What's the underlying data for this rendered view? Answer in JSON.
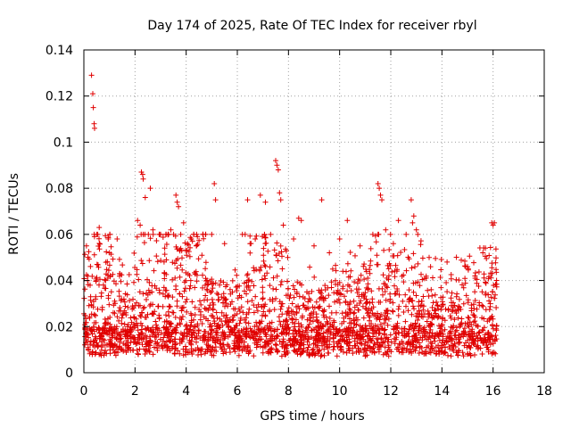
{
  "chart_data": {
    "type": "scatter",
    "title": "Day 174 of 2025, Rate Of TEC Index for receiver rbyl",
    "xlabel": "GPS time / hours",
    "ylabel": "ROTI / TECUs",
    "xlim": [
      0,
      18
    ],
    "ylim": [
      0,
      0.14
    ],
    "xticks": [
      "0",
      "2",
      "4",
      "6",
      "8",
      "10",
      "12",
      "14",
      "16",
      "18"
    ],
    "yticks": [
      "0",
      "0.02",
      "0.04",
      "0.06",
      "0.08",
      "0.1",
      "0.12",
      "0.14"
    ],
    "grid": true,
    "marker": "plus",
    "color": "#e00000",
    "series": [
      {
        "name": "ROTI",
        "points": [
          [
            0.3,
            0.129
          ],
          [
            0.35,
            0.121
          ],
          [
            0.37,
            0.115
          ],
          [
            0.4,
            0.108
          ],
          [
            0.42,
            0.106
          ],
          [
            2.25,
            0.087
          ],
          [
            2.3,
            0.086
          ],
          [
            2.32,
            0.084
          ],
          [
            2.4,
            0.076
          ],
          [
            2.6,
            0.08
          ],
          [
            3.6,
            0.077
          ],
          [
            3.65,
            0.074
          ],
          [
            3.7,
            0.072
          ],
          [
            5.1,
            0.082
          ],
          [
            5.15,
            0.075
          ],
          [
            6.4,
            0.075
          ],
          [
            6.9,
            0.077
          ],
          [
            7.1,
            0.074
          ],
          [
            7.5,
            0.092
          ],
          [
            7.55,
            0.09
          ],
          [
            7.6,
            0.088
          ],
          [
            7.65,
            0.078
          ],
          [
            7.7,
            0.075
          ],
          [
            8.4,
            0.067
          ],
          [
            8.5,
            0.066
          ],
          [
            9.3,
            0.075
          ],
          [
            10.3,
            0.066
          ],
          [
            11.5,
            0.082
          ],
          [
            11.55,
            0.08
          ],
          [
            11.6,
            0.077
          ],
          [
            11.65,
            0.075
          ],
          [
            12.3,
            0.066
          ],
          [
            12.8,
            0.075
          ],
          [
            12.9,
            0.068
          ],
          [
            12.85,
            0.065
          ],
          [
            15.95,
            0.065
          ],
          [
            16.0,
            0.064
          ],
          [
            16.05,
            0.065
          ],
          [
            0.1,
            0.055
          ],
          [
            0.5,
            0.06
          ],
          [
            0.6,
            0.063
          ],
          [
            1.0,
            0.052
          ],
          [
            1.3,
            0.058
          ],
          [
            2.1,
            0.066
          ],
          [
            2.2,
            0.064
          ],
          [
            2.7,
            0.062
          ],
          [
            3.0,
            0.06
          ],
          [
            3.4,
            0.062
          ],
          [
            3.9,
            0.065
          ],
          [
            4.2,
            0.058
          ],
          [
            4.4,
            0.055
          ],
          [
            5.0,
            0.06
          ],
          [
            5.5,
            0.056
          ],
          [
            6.2,
            0.06
          ],
          [
            6.7,
            0.058
          ],
          [
            7.3,
            0.06
          ],
          [
            7.8,
            0.064
          ],
          [
            8.2,
            0.058
          ],
          [
            9.0,
            0.055
          ],
          [
            9.6,
            0.052
          ],
          [
            10.0,
            0.058
          ],
          [
            10.8,
            0.055
          ],
          [
            11.3,
            0.06
          ],
          [
            11.8,
            0.062
          ],
          [
            12.1,
            0.056
          ],
          [
            12.6,
            0.06
          ],
          [
            13.0,
            0.062
          ],
          [
            13.5,
            0.05
          ],
          [
            14.2,
            0.048
          ],
          [
            15.0,
            0.046
          ],
          [
            15.6,
            0.052
          ]
        ]
      }
    ]
  }
}
